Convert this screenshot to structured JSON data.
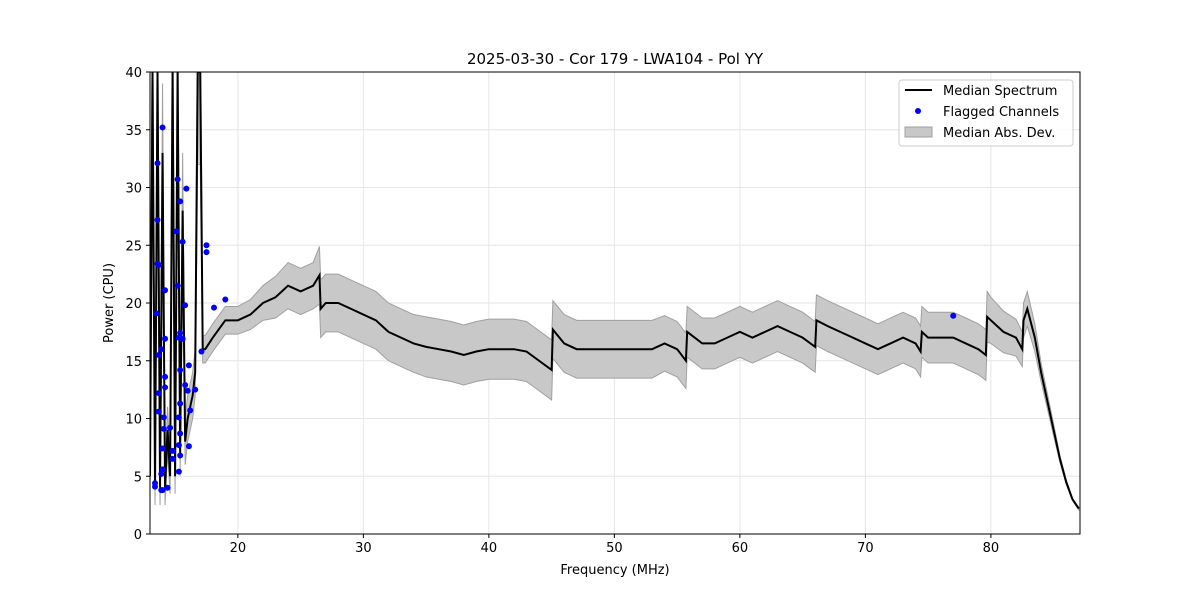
{
  "chart_data": {
    "type": "line",
    "title": "2025-03-30 - Cor 179 - LWA104 - Pol YY",
    "xlabel": "Frequency (MHz)",
    "ylabel": "Power (CPU)",
    "xlim": [
      13.0,
      87.1
    ],
    "ylim": [
      0,
      40
    ],
    "xticks": [
      20,
      30,
      40,
      50,
      60,
      70,
      80
    ],
    "yticks": [
      0,
      5,
      10,
      15,
      20,
      25,
      30,
      35,
      40
    ],
    "grid": true,
    "legend_position": "top-right",
    "legend": [
      "Median Spectrum",
      "Flagged Channels",
      "Median Abs. Dev."
    ],
    "colors": {
      "median": "#000000",
      "flagged": "#0000ff",
      "mad": "#c8c8c8",
      "mad_edge": "#a0a0a0"
    },
    "median": {
      "x": [
        13.0,
        13.2,
        13.4,
        13.6,
        13.8,
        14.0,
        14.2,
        14.4,
        14.6,
        14.8,
        15.0,
        15.2,
        15.4,
        15.6,
        15.8,
        16.0,
        16.2,
        16.4,
        16.6,
        16.8,
        17.0,
        17.2,
        17.4,
        18,
        19,
        20,
        21,
        22,
        23,
        24,
        25,
        26,
        26.5,
        26.6,
        27,
        28,
        29,
        30,
        31,
        32,
        33,
        34,
        35,
        36,
        37,
        38,
        39,
        40,
        41,
        42,
        43,
        44,
        45,
        45.1,
        46,
        47,
        48,
        49,
        50,
        51,
        52,
        53,
        54,
        55,
        55.7,
        55.8,
        57,
        58,
        59,
        60,
        61,
        62,
        63,
        64,
        65,
        66,
        66.1,
        67,
        68,
        69,
        70,
        71,
        72,
        73,
        74,
        74.4,
        74.5,
        75,
        76,
        77,
        78,
        79,
        79.6,
        79.7,
        80,
        81,
        82,
        82.5,
        82.6,
        82.9,
        83.5,
        84,
        85,
        85.5,
        86,
        86.5,
        87
      ],
      "y": [
        5,
        40,
        4,
        40,
        4,
        33,
        4,
        9,
        5,
        40,
        5,
        40,
        7,
        28,
        8,
        10,
        11,
        12,
        14,
        40,
        40,
        16,
        16,
        17,
        18.5,
        18.5,
        19,
        20,
        20.5,
        21.5,
        21,
        21.5,
        22.4,
        19.5,
        20,
        20,
        19.5,
        19,
        18.5,
        17.5,
        17,
        16.5,
        16.2,
        16,
        15.8,
        15.5,
        15.8,
        16,
        16,
        16,
        15.8,
        15,
        14.2,
        17.7,
        16.5,
        16,
        16,
        16,
        16,
        16,
        16,
        16,
        16.5,
        16,
        15,
        17.5,
        16.5,
        16.5,
        17,
        17.5,
        17,
        17.5,
        18,
        17.5,
        17,
        16.2,
        18.5,
        18,
        17.5,
        17,
        16.5,
        16,
        16.5,
        17,
        16.5,
        15.8,
        17.5,
        17,
        17,
        17,
        16.5,
        16,
        15.5,
        18.8,
        18.5,
        17.5,
        17,
        16,
        18.5,
        19.5,
        17,
        14,
        9,
        6.5,
        4.5,
        3,
        2.2
      ],
      "mad": [
        1.5,
        8,
        1.5,
        8,
        1.5,
        6,
        1.5,
        2,
        1.5,
        8,
        1.5,
        8,
        2,
        5,
        2,
        2,
        2,
        2,
        2,
        8,
        8,
        1.2,
        1.2,
        1.2,
        1.2,
        1.2,
        1.3,
        1.5,
        1.8,
        2,
        2,
        2,
        2.5,
        2.5,
        2.5,
        2.5,
        2.5,
        2.5,
        2.5,
        2.5,
        2.5,
        2.5,
        2.6,
        2.6,
        2.6,
        2.6,
        2.6,
        2.6,
        2.6,
        2.6,
        2.6,
        2.6,
        2.6,
        2.5,
        2.5,
        2.5,
        2.5,
        2.5,
        2.5,
        2.5,
        2.5,
        2.5,
        2.4,
        2.4,
        2.4,
        2.2,
        2.2,
        2.2,
        2.2,
        2.2,
        2.2,
        2.2,
        2.2,
        2.2,
        2.2,
        2.2,
        2.2,
        2.2,
        2.2,
        2.2,
        2.2,
        2.2,
        2.2,
        2.2,
        2.2,
        2.2,
        2.2,
        2.2,
        2.2,
        2.2,
        2.2,
        2.2,
        2.2,
        2.2,
        2,
        1.8,
        1.6,
        1.5,
        1.5,
        1.5,
        1.2,
        0.8,
        0.5,
        0.3,
        0.2,
        0.1,
        0.1
      ]
    },
    "flagged": {
      "x": [
        14.0,
        13.6,
        15.2,
        15.9,
        15.4,
        13.6,
        15.1,
        15.6,
        17.5,
        17.5,
        13.6,
        13.7,
        14.2,
        15.2,
        18.1,
        19.0,
        13.5,
        15.8,
        15.4,
        15.3,
        15.6,
        14.2,
        13.9,
        13.7,
        17.1,
        16.1,
        15.4,
        14.2,
        14.2,
        13.7,
        15.8,
        16.0,
        16.6,
        15.4,
        16.2,
        13.7,
        14.1,
        15.3,
        14.6,
        14.1,
        15.4,
        16.1,
        15.3,
        14.0,
        14.8,
        15.4,
        14.8,
        15.3,
        14.0,
        13.9,
        13.4,
        13.4,
        14.4,
        13.9,
        14.0,
        77.0
      ],
      "y": [
        35.2,
        32.1,
        30.7,
        29.9,
        28.8,
        27.2,
        26.2,
        25.3,
        25.0,
        24.4,
        23.4,
        23.3,
        21.1,
        21.5,
        19.6,
        20.3,
        19.1,
        19.8,
        17.4,
        17.0,
        16.9,
        16.9,
        16.0,
        15.5,
        15.8,
        14.6,
        14.2,
        13.6,
        12.7,
        12.2,
        12.9,
        12.4,
        12.5,
        11.3,
        10.7,
        10.6,
        10.1,
        10.1,
        9.2,
        9.1,
        8.7,
        7.6,
        7.7,
        7.4,
        7.2,
        6.8,
        6.5,
        5.4,
        5.6,
        5.2,
        4.4,
        4.1,
        4.0,
        3.8,
        3.8,
        18.9
      ]
    }
  }
}
